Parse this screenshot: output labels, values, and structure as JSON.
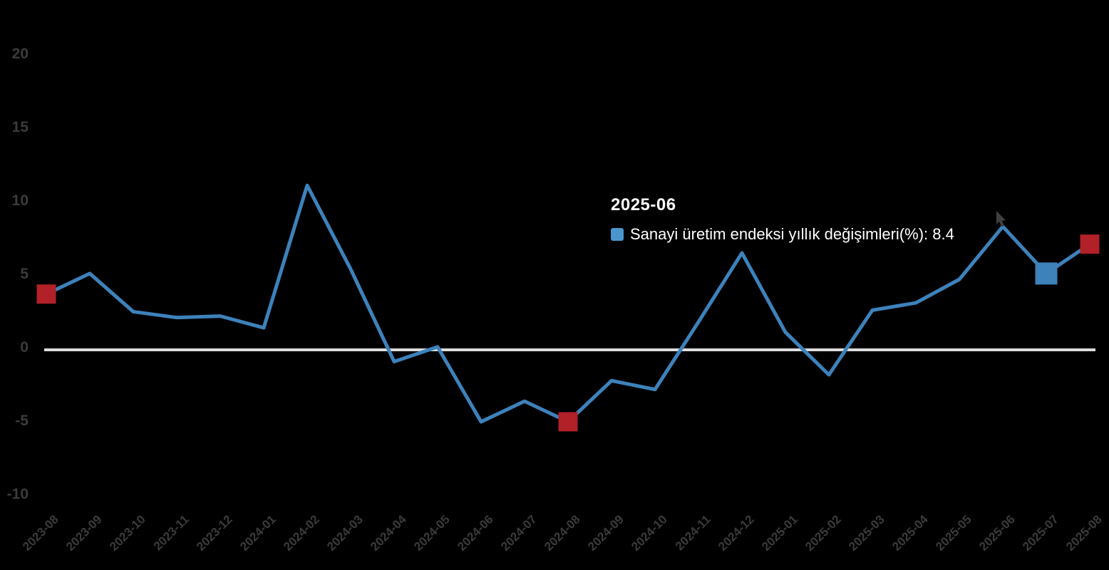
{
  "chart_data": {
    "type": "line",
    "title": "",
    "series_name": "Sanayi üretim endeksi yıllık değişimleri(%)",
    "categories": [
      "2023-08",
      "2023-09",
      "2023-10",
      "2023-11",
      "2023-12",
      "2024-01",
      "2024-02",
      "2024-03",
      "2024-04",
      "2024-05",
      "2024-06",
      "2024-07",
      "2024-08",
      "2024-09",
      "2024-10",
      "2024-11",
      "2024-12",
      "2025-01",
      "2025-02",
      "2025-03",
      "2025-04",
      "2025-05",
      "2025-06",
      "2025-07",
      "2025-08"
    ],
    "values": [
      3.8,
      5.2,
      2.6,
      2.2,
      2.3,
      1.5,
      11.2,
      5.5,
      -0.8,
      0.2,
      -4.9,
      -3.5,
      -4.9,
      -2.1,
      -2.7,
      1.9,
      6.6,
      1.2,
      -1.7,
      2.7,
      3.2,
      4.8,
      8.4,
      5.2,
      7.2
    ],
    "xlabel": "",
    "ylabel": "",
    "ylim": [
      -10,
      20
    ],
    "ytick_values": [
      20,
      15,
      10,
      5,
      0,
      -5,
      -10
    ],
    "ytick_labels": [
      "20",
      "15",
      "10",
      "5",
      "0",
      "-5",
      "-10"
    ],
    "grid": false,
    "zero_line": true,
    "legend_position": "tooltip",
    "red_marker_indices": [
      0,
      12,
      24
    ],
    "blue_marker_index": 23,
    "hover_index": 22
  },
  "tooltip": {
    "title": "2025-06",
    "series_label": "Sanayi üretim endeksi yıllık değişimleri(%)",
    "value": "8.4",
    "text": "Sanayi üretim endeksi yıllık değişimleri(%): 8.4"
  },
  "colors": {
    "background": "#000000",
    "line": "#3d82bb",
    "red_marker": "#b22028",
    "blue_marker": "#3d82bb",
    "tooltip_marker": "#4a96cd",
    "zero_line": "#dcdcdc",
    "axis_label": "#3b3b3b",
    "tooltip_text": "#ffffff"
  }
}
